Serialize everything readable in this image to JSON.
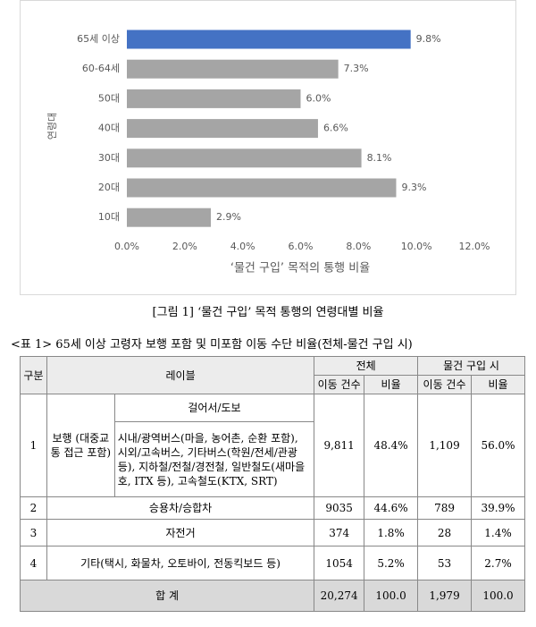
{
  "chart_data": {
    "type": "bar",
    "orientation": "horizontal",
    "categories": [
      "65세 이상",
      "60-64세",
      "50대",
      "40대",
      "30대",
      "20대",
      "10대"
    ],
    "values": [
      9.8,
      7.3,
      6.0,
      6.6,
      8.1,
      9.3,
      2.9
    ],
    "value_labels": [
      "9.8%",
      "7.3%",
      "6.0%",
      "6.6%",
      "8.1%",
      "9.3%",
      "2.9%"
    ],
    "colors": [
      "#4472c4",
      "#a5a5a5",
      "#a5a5a5",
      "#a5a5a5",
      "#a5a5a5",
      "#a5a5a5",
      "#a5a5a5"
    ],
    "xlim": [
      0,
      12
    ],
    "xticks": [
      {
        "value": 0,
        "label": "0.0%"
      },
      {
        "value": 2,
        "label": "2.0%"
      },
      {
        "value": 4,
        "label": "4.0%"
      },
      {
        "value": 6,
        "label": "6.0%"
      },
      {
        "value": 8,
        "label": "8.0%"
      },
      {
        "value": 10,
        "label": "10.0%"
      },
      {
        "value": 12,
        "label": "12.0%"
      }
    ],
    "xlabel": "‘물건 구입’ 목적의 통행 비율",
    "ylabel": "연령대",
    "grid": false
  },
  "figure_caption": "[그림 1] ‘물건 구입’ 목적 통행의 연령대별 비율",
  "table": {
    "title": "<표 1>  65세 이상 고령자 보행 포함 및 미포함 이동 수단 비율(전체-물건 구입 시)",
    "headers": {
      "no": "구분",
      "label": "레이블",
      "total": "전체",
      "purchase": "물건 구입 시",
      "count1": "이동 건수",
      "ratio1": "비율",
      "count2": "이동 건수",
      "ratio2": "비율"
    },
    "rows": [
      {
        "no": "1",
        "group": "보행 (대중교통 접근 포함)",
        "modes": [
          "걸어서/도보",
          "시내/광역버스(마을, 농어촌, 순환 포함), 시외/고속버스, 기타버스(학원/전세/관광 등), 지하철/전철/경전철, 일반철도(새마을호, ITX 등), 고속철도(KTX, SRT)"
        ],
        "cells": [
          "9,811",
          "48.4%",
          "1,109",
          "56.0%"
        ]
      },
      {
        "no": "2",
        "label": "승용차/승합차",
        "cells": [
          "9035",
          "44.6%",
          "789",
          "39.9%"
        ]
      },
      {
        "no": "3",
        "label": "자전거",
        "cells": [
          "374",
          "1.8%",
          "28",
          "1.4%"
        ]
      },
      {
        "no": "4",
        "label": "기타(택시, 화물차, 오토바이, 전동킥보드 등)",
        "cells": [
          "1054",
          "5.2%",
          "53",
          "2.7%"
        ]
      }
    ],
    "total": {
      "label": "합 계",
      "cells": [
        "20,274",
        "100.0",
        "1,979",
        "100.0"
      ]
    }
  }
}
